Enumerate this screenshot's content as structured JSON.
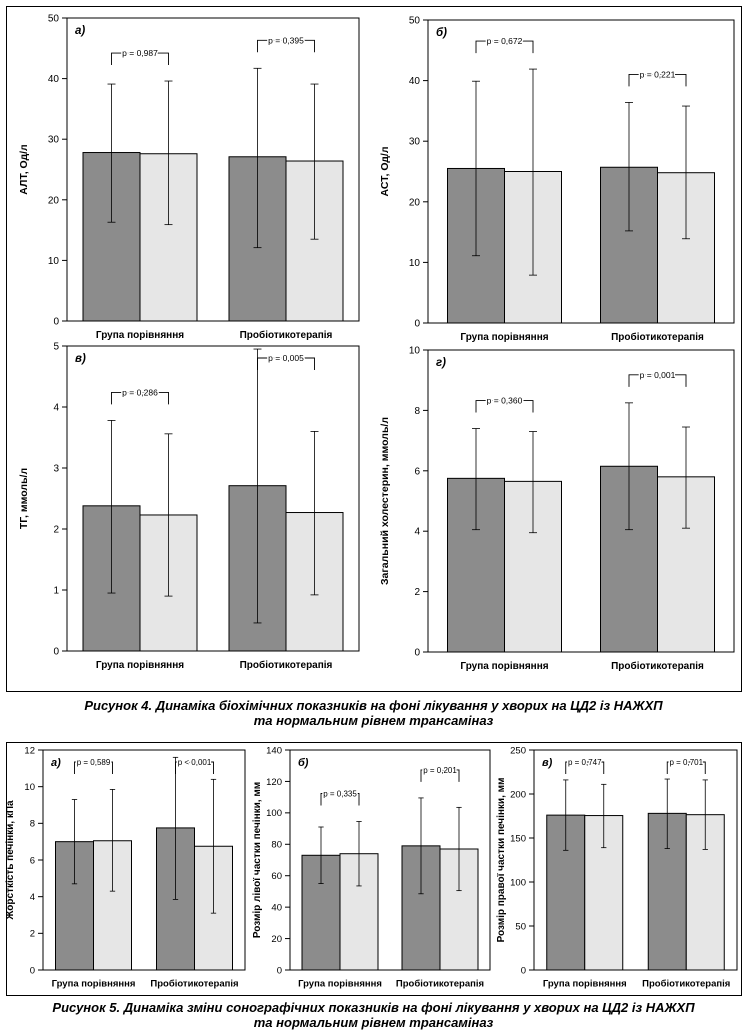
{
  "figure4": {
    "caption_line1": "Рисунок 4. Динаміка біохімічних показників на фоні лікування у хворих на ЦД2 із НАЖХП",
    "caption_line2": "та нормальним рівнем трансаміназ"
  },
  "figure5": {
    "caption_line1": "Рисунок 5. Динаміка зміни сонографічних показників на фоні лікування у хворих на ЦД2 із НАЖХП",
    "caption_line2": "та нормальним рівнем трансаміназ"
  },
  "colors": {
    "before": "#8c8c8c",
    "after": "#e6e6e6",
    "stroke": "#000000"
  },
  "chart_data": [
    {
      "type": "bar",
      "panel": "а)",
      "ylabel": "АЛТ, Од/л",
      "ylim": [
        0,
        50
      ],
      "yticks": [
        0,
        10,
        20,
        30,
        40,
        50
      ],
      "categories": [
        "Група порівняння",
        "Пробіотикотерапія"
      ],
      "series": [
        {
          "values": [
            27.8,
            27.1
          ],
          "err_low": [
            16.3,
            12.1
          ],
          "err_high": [
            39.1,
            41.7
          ]
        },
        {
          "values": [
            27.6,
            26.4
          ],
          "err_low": [
            15.9,
            13.5
          ],
          "err_high": [
            39.6,
            39.1
          ]
        }
      ],
      "p_values": [
        "p = 0,987",
        "p = 0,395"
      ]
    },
    {
      "type": "bar",
      "panel": "б)",
      "ylabel": "АСТ, Од/л",
      "ylim": [
        0,
        50
      ],
      "yticks": [
        0,
        10,
        20,
        30,
        40,
        50
      ],
      "categories": [
        "Група порівняння",
        "Пробіотикотерапія"
      ],
      "series": [
        {
          "values": [
            25.5,
            25.7
          ],
          "err_low": [
            11.1,
            15.2
          ],
          "err_high": [
            39.9,
            36.4
          ]
        },
        {
          "values": [
            25.0,
            24.8
          ],
          "err_low": [
            7.9,
            13.9
          ],
          "err_high": [
            41.9,
            35.8
          ]
        }
      ],
      "p_values": [
        "p = 0,672",
        "p = 0,221"
      ]
    },
    {
      "type": "bar",
      "panel": "в)",
      "ylabel": "ТГ, ммоль/л",
      "ylim": [
        0,
        5
      ],
      "yticks": [
        0,
        1,
        2,
        3,
        4,
        5
      ],
      "categories": [
        "Група порівняння",
        "Пробіотикотерапія"
      ],
      "series": [
        {
          "values": [
            2.38,
            2.71
          ],
          "err_low": [
            0.95,
            0.46
          ],
          "err_high": [
            3.78,
            4.95
          ]
        },
        {
          "values": [
            2.23,
            2.27
          ],
          "err_low": [
            0.9,
            0.92
          ],
          "err_high": [
            3.56,
            3.6
          ]
        }
      ],
      "p_values": [
        "p = 0,286",
        "p = 0,005"
      ]
    },
    {
      "type": "bar",
      "panel": "г)",
      "ylabel": "Загальний холестерин, ммоль/л",
      "ylim": [
        0,
        10
      ],
      "yticks": [
        0,
        2,
        4,
        6,
        8,
        10
      ],
      "categories": [
        "Група порівняння",
        "Пробіотикотерапія"
      ],
      "series": [
        {
          "values": [
            5.75,
            6.15
          ],
          "err_low": [
            4.05,
            4.05
          ],
          "err_high": [
            7.4,
            8.25
          ]
        },
        {
          "values": [
            5.65,
            5.8
          ],
          "err_low": [
            3.95,
            4.1
          ],
          "err_high": [
            7.3,
            7.45
          ]
        }
      ],
      "p_values": [
        "p = 0,360",
        "p = 0,001"
      ]
    },
    {
      "type": "bar",
      "panel": "а)",
      "ylabel": "Жорсткість печінки, кПа",
      "ylim": [
        0,
        12
      ],
      "yticks": [
        0,
        2,
        4,
        6,
        8,
        10,
        12
      ],
      "categories": [
        "Група порівняння",
        "Пробіотикотерапія"
      ],
      "series": [
        {
          "values": [
            7.0,
            7.75
          ],
          "err_low": [
            4.7,
            3.85
          ],
          "err_high": [
            9.3,
            11.6
          ]
        },
        {
          "values": [
            7.05,
            6.75
          ],
          "err_low": [
            4.3,
            3.1
          ],
          "err_high": [
            9.85,
            10.4
          ]
        }
      ],
      "p_values": [
        "p = 0,589",
        "p < 0,001"
      ]
    },
    {
      "type": "bar",
      "panel": "б)",
      "ylabel": "Розмір лівої частки печінки, мм",
      "ylim": [
        0,
        140
      ],
      "yticks": [
        0,
        20,
        40,
        60,
        80,
        100,
        120,
        140
      ],
      "categories": [
        "Група порівняння",
        "Пробіотикотерапія"
      ],
      "series": [
        {
          "values": [
            73,
            79
          ],
          "err_low": [
            55,
            48.5
          ],
          "err_high": [
            91,
            109.5
          ]
        },
        {
          "values": [
            74,
            77
          ],
          "err_low": [
            53.5,
            50.5
          ],
          "err_high": [
            94.5,
            103.5
          ]
        }
      ],
      "p_values": [
        "p = 0,335",
        "p = 0,201"
      ]
    },
    {
      "type": "bar",
      "panel": "в)",
      "ylabel": "Розмір правої частки печінки, мм",
      "ylim": [
        0,
        250
      ],
      "yticks": [
        0,
        50,
        100,
        150,
        200,
        250
      ],
      "categories": [
        "Група порівняння",
        "Пробіотикотерапія"
      ],
      "series": [
        {
          "values": [
            176,
            178
          ],
          "err_low": [
            136,
            138
          ],
          "err_high": [
            216,
            217
          ]
        },
        {
          "values": [
            175.5,
            176.5
          ],
          "err_low": [
            139,
            137
          ],
          "err_high": [
            211,
            216
          ]
        }
      ],
      "p_values": [
        "p = 0,747",
        "p = 0,701"
      ]
    }
  ]
}
